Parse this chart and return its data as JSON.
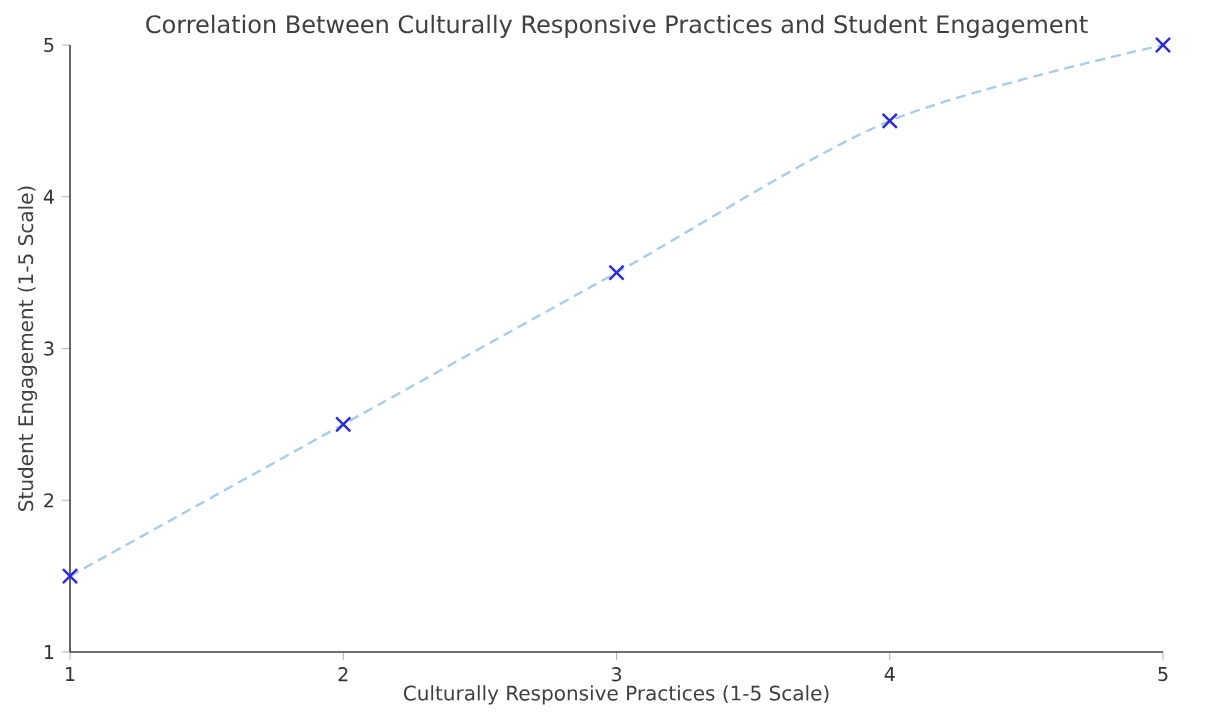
{
  "chart_data": {
    "type": "line",
    "title": "Correlation Between Culturally Responsive Practices and Student Engagement",
    "xlabel": "Culturally Responsive Practices (1-5 Scale)",
    "ylabel": "Student Engagement (1-5 Scale)",
    "x": [
      1,
      2,
      3,
      4,
      5
    ],
    "series": [
      {
        "color": "#a8cde6",
        "values": [
          1.5,
          2.5,
          3.5,
          4.5,
          5
        ],
        "line_style": "dashed",
        "marker": "none"
      },
      {
        "type": "scatter",
        "color": "#2a2ad8",
        "values": [
          1.5,
          2.5,
          3.5,
          4.5,
          5
        ],
        "marker": "cross"
      }
    ],
    "xlim": [
      1,
      5
    ],
    "ylim": [
      1,
      5
    ],
    "xticks": [
      1,
      2,
      3,
      4,
      5
    ],
    "yticks": [
      1,
      2,
      3,
      4,
      5
    ]
  }
}
